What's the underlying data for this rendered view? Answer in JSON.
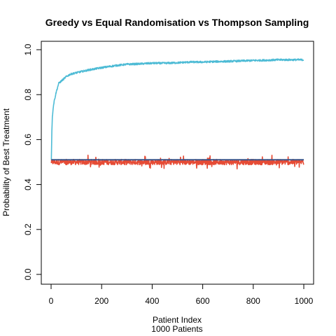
{
  "chart_data": {
    "type": "line",
    "title": "Greedy vs Equal Randomisation vs Thompson Sampling",
    "xlabel": "Patient Index",
    "xlabel2": "1000 Patients",
    "ylabel": "Probability of Best Treatment",
    "xlim": [
      0,
      1000
    ],
    "ylim": [
      0,
      1
    ],
    "xticks": [
      0,
      200,
      400,
      600,
      800,
      1000
    ],
    "yticks": [
      0.0,
      0.2,
      0.4,
      0.6,
      0.8,
      1.0
    ],
    "ytick_labels": [
      "0.0",
      "0.2",
      "0.4",
      "0.6",
      "0.8",
      "1.0"
    ],
    "grid": false,
    "legend": "none",
    "series": [
      {
        "key": "thompson",
        "color": "#4DBBD5",
        "x": [
          1,
          3,
          5,
          8,
          12,
          16,
          20,
          25,
          30,
          40,
          50,
          60,
          75,
          90,
          110,
          130,
          150,
          175,
          200,
          230,
          260,
          300,
          350,
          400,
          450,
          500,
          550,
          600,
          650,
          700,
          750,
          800,
          850,
          900,
          950,
          1000
        ],
        "values": [
          0.51,
          0.64,
          0.7,
          0.74,
          0.77,
          0.79,
          0.81,
          0.83,
          0.85,
          0.86,
          0.87,
          0.88,
          0.89,
          0.895,
          0.9,
          0.905,
          0.91,
          0.915,
          0.92,
          0.925,
          0.93,
          0.935,
          0.937,
          0.94,
          0.94,
          0.942,
          0.945,
          0.945,
          0.947,
          0.948,
          0.95,
          0.952,
          0.953,
          0.955,
          0.955,
          0.955
        ],
        "noise": 0.004
      },
      {
        "key": "equal",
        "color": "#E64B35",
        "x": [
          1,
          1000
        ],
        "values": [
          0.5,
          0.5
        ],
        "noise": 0.012
      },
      {
        "key": "greedy",
        "color": "#3C5488",
        "x": [
          1,
          1000
        ],
        "values": [
          0.51,
          0.51
        ],
        "noise": 0.0
      }
    ]
  }
}
